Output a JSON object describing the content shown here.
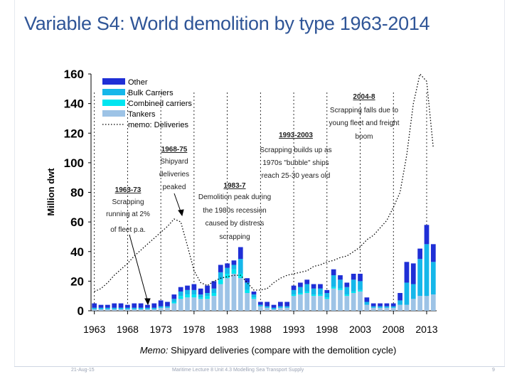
{
  "slide": {
    "title": "Variable S4: World demolition by type 1963-2014",
    "footer_date": "21-Aug-15",
    "footer_center": "Maritime Lecture 8 Unit 4.3 Modelling Sea Transport Supply",
    "page_number": "9"
  },
  "chart_data": {
    "type": "bar",
    "stacked": true,
    "ylabel": "Million dwt",
    "xlabel_prefix": "Memo:",
    "xlabel": "Shipyard deliveries (compare with the demolition cycle)",
    "ylim": [
      0,
      160
    ],
    "yticks": [
      0,
      20,
      40,
      60,
      80,
      100,
      120,
      140,
      160
    ],
    "xtick_labels": [
      "1963",
      "1968",
      "1973",
      "1978",
      "1983",
      "1988",
      "1993",
      "1998",
      "2003",
      "2008",
      "2013"
    ],
    "years": [
      1963,
      1964,
      1965,
      1966,
      1967,
      1968,
      1969,
      1970,
      1971,
      1972,
      1973,
      1974,
      1975,
      1976,
      1977,
      1978,
      1979,
      1980,
      1981,
      1982,
      1983,
      1984,
      1985,
      1986,
      1987,
      1988,
      1989,
      1990,
      1991,
      1992,
      1993,
      1994,
      1995,
      1996,
      1997,
      1998,
      1999,
      2000,
      2001,
      2002,
      2003,
      2004,
      2005,
      2006,
      2007,
      2008,
      2009,
      2010,
      2011,
      2012,
      2013,
      2014
    ],
    "series": [
      {
        "name": "Tankers",
        "color": "#9dc3e6",
        "values": [
          1,
          1,
          1,
          1,
          1,
          1,
          1,
          1,
          1,
          1,
          2,
          2,
          5,
          8,
          9,
          9,
          8,
          8,
          10,
          18,
          22,
          25,
          22,
          12,
          8,
          3,
          2,
          1,
          2,
          2,
          10,
          11,
          12,
          10,
          10,
          8,
          15,
          14,
          10,
          12,
          13,
          4,
          2,
          2,
          2,
          2,
          4,
          4,
          8,
          10,
          10,
          11
        ]
      },
      {
        "name": "Combined carriers",
        "color": "#00e5f0",
        "values": [
          0,
          0,
          0,
          0,
          0,
          0,
          0,
          0,
          0,
          0,
          0,
          0,
          1,
          2,
          2,
          2,
          1,
          2,
          2,
          3,
          3,
          3,
          3,
          2,
          1,
          0,
          0,
          0,
          0,
          0,
          1,
          1,
          1,
          1,
          1,
          1,
          1,
          1,
          1,
          1,
          1,
          0,
          0,
          0,
          0,
          0,
          0,
          0,
          0,
          0,
          0,
          0
        ]
      },
      {
        "name": "Bulk Carriers",
        "color": "#15b7ea",
        "values": [
          1,
          1,
          1,
          1,
          1,
          1,
          1,
          1,
          1,
          1,
          1,
          1,
          2,
          3,
          3,
          3,
          2,
          2,
          3,
          5,
          4,
          3,
          10,
          5,
          2,
          1,
          1,
          1,
          1,
          1,
          3,
          4,
          5,
          4,
          4,
          3,
          8,
          6,
          5,
          8,
          6,
          2,
          1,
          1,
          1,
          1,
          3,
          15,
          10,
          25,
          35,
          22
        ]
      },
      {
        "name": "Other",
        "color": "#1f2fd6",
        "values": [
          3,
          2,
          2,
          3,
          3,
          2,
          3,
          3,
          2,
          3,
          4,
          3,
          3,
          3,
          3,
          4,
          4,
          5,
          5,
          5,
          3,
          3,
          8,
          3,
          2,
          2,
          3,
          2,
          3,
          3,
          3,
          3,
          3,
          3,
          3,
          2,
          4,
          3,
          3,
          4,
          5,
          3,
          2,
          2,
          2,
          2,
          5,
          14,
          14,
          7,
          13,
          12
        ]
      }
    ],
    "deliveries": {
      "name": "memo: Deliveries",
      "values": [
        13,
        15,
        19,
        24,
        28,
        32,
        37,
        41,
        45,
        49,
        53,
        57,
        62,
        60,
        44,
        27,
        19,
        17,
        20,
        22,
        23,
        24,
        24,
        19,
        14,
        14,
        15,
        19,
        22,
        24,
        25,
        26,
        27,
        30,
        31,
        33,
        34,
        36,
        37,
        40,
        43,
        48,
        51,
        56,
        61,
        70,
        80,
        105,
        140,
        160,
        155,
        110
      ]
    },
    "legend": [
      "Other",
      "Bulk Carriers",
      "Combined carriers",
      "Tankers",
      "memo: Deliveries"
    ],
    "legend_position": "top-left",
    "annotations": [
      {
        "id": "a1963",
        "heading": "1963-73",
        "lines": [
          "Scrapping",
          "running at 2%",
          "of fleet p.a."
        ]
      },
      {
        "id": "a1968",
        "heading": "1968-75",
        "lines": [
          "Shipyard",
          "deliveries",
          "peaked"
        ]
      },
      {
        "id": "a1983",
        "heading": "1983-7",
        "lines": [
          "Demolition peak during",
          "the 1980s recession",
          "caused by distress",
          "scrapping"
        ]
      },
      {
        "id": "a1993",
        "heading": "1993-2003",
        "lines": [
          "Scrapping builds up as",
          "1970s \"bubble\" ships",
          "reach 25-30 years old"
        ]
      },
      {
        "id": "a2004",
        "heading": "2004-8",
        "lines": [
          "Scrapping falls due to",
          "young fleet and freight",
          "boom"
        ]
      }
    ]
  }
}
